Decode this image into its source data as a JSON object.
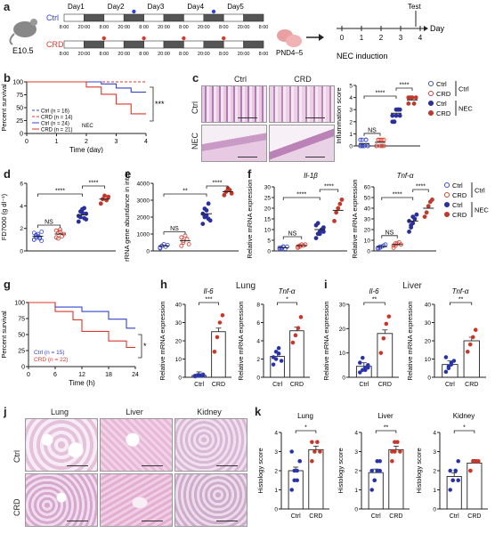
{
  "panel_a": {
    "letter": "a",
    "mouse_label": "E10.5",
    "day_labels": [
      "Day1",
      "Day2",
      "Day3",
      "Day4",
      "Day5"
    ],
    "ctrl_label": "Ctrl",
    "crd_label": "CRD",
    "time_ticks": [
      "8:00",
      "20:00",
      "8:00",
      "20:00",
      "8:00",
      "20:00",
      "8:00",
      "20:00",
      "8:00",
      "20:00",
      "8:00"
    ],
    "pnd_label": "PND4–5",
    "test_label": "Test",
    "nec_axis_ticks": [
      "0",
      "1",
      "2",
      "3",
      "4"
    ],
    "day_axis_label": "Day",
    "nec_label": "NEC induction"
  },
  "panel_b": {
    "letter": "b",
    "ylabel": "Percent survival",
    "xlabel": "Time (day)",
    "legend": [
      "Ctrl (n = 16)",
      "CRD (n = 14)",
      "Ctrl (n = 24)",
      "CRD (n = 21)"
    ],
    "nec_label": "NEC",
    "sig": "***"
  },
  "panel_c": {
    "letter": "c",
    "col_labels": [
      "Ctrl",
      "CRD"
    ],
    "row_labels": [
      "Ctrl",
      "NEC"
    ],
    "ylabel": "Inflammation score",
    "sig": [
      "****",
      "****",
      "NS"
    ],
    "legend": [
      "Ctrl",
      "CRD",
      "Ctrl",
      "CRD"
    ],
    "group_labels": [
      "Ctrl",
      "NEC"
    ]
  },
  "panel_d": {
    "letter": "d",
    "ylabel": "FD7000 (g dl⁻¹)",
    "sig": [
      "****",
      "****",
      "NS"
    ]
  },
  "panel_e": {
    "letter": "e",
    "ylabel": "16s rRNA gene abundance in intestine",
    "sig": [
      "**",
      "****",
      "NS"
    ]
  },
  "panel_f": {
    "letter": "f",
    "titles": [
      "Il-1β",
      "Tnf-α"
    ],
    "ylabel": "Relative mRNA expression",
    "sig": [
      "****",
      "****",
      "NS"
    ],
    "legend": [
      "Ctrl",
      "CRD",
      "Ctrl",
      "CRD"
    ],
    "group_labels": [
      "Ctrl",
      "NEC"
    ]
  },
  "panel_g": {
    "letter": "g",
    "ylabel": "Percent survival",
    "xlabel": "Time (h)",
    "legend": [
      "Ctrl (n = 15)",
      "CRD (n = 22)"
    ],
    "sig": "*"
  },
  "panel_h": {
    "letter": "h",
    "tissue": "Lung",
    "titles": [
      "Il-6",
      "Tnf-α"
    ],
    "ylabel": "Relative mRNA expression",
    "sig": [
      "***",
      "*"
    ],
    "xcats": [
      "Ctrl",
      "CRD"
    ]
  },
  "panel_i": {
    "letter": "i",
    "tissue": "Liver",
    "titles": [
      "Il-6",
      "Tnf-α"
    ],
    "ylabel": "Relative mRNA expression",
    "sig": [
      "**",
      "**"
    ],
    "xcats": [
      "Ctrl",
      "CRD"
    ]
  },
  "panel_j": {
    "letter": "j",
    "col_labels": [
      "Lung",
      "Liver",
      "Kidney"
    ],
    "row_labels": [
      "Ctrl",
      "CRD"
    ]
  },
  "panel_k": {
    "letter": "k",
    "titles": [
      "Lung",
      "Liver",
      "Kidney"
    ],
    "ylabel": "Histology score",
    "sig": [
      "*",
      "**",
      "*"
    ],
    "xcats": [
      "Ctrl",
      "CRD"
    ]
  },
  "colors": {
    "ctrl": "#3344cc",
    "crd": "#d9382a",
    "ctrl_nec": "#2a2f9a",
    "crd_nec": "#c0392b"
  },
  "chart_data": [
    {
      "id": "b",
      "type": "line",
      "title": "",
      "xlabel": "Time (day)",
      "ylabel": "Percent survival",
      "xlim": [
        0,
        4
      ],
      "ylim": [
        0,
        100
      ],
      "xticks": [
        0,
        1,
        2,
        3,
        4
      ],
      "yticks": [
        0,
        25,
        50,
        75,
        100
      ],
      "series": [
        {
          "name": "Ctrl (n = 16)",
          "x": [
            0,
            4
          ],
          "y": [
            100,
            100
          ]
        },
        {
          "name": "CRD (n = 14)",
          "x": [
            0,
            4
          ],
          "y": [
            100,
            100
          ]
        },
        {
          "name": "Ctrl (n = 24)",
          "x": [
            0,
            2.5,
            2.5,
            3,
            3,
            3.5,
            3.5,
            4
          ],
          "y": [
            100,
            100,
            96,
            96,
            88,
            88,
            80,
            80
          ]
        },
        {
          "name": "CRD (n = 21)",
          "x": [
            0,
            2,
            2,
            2.5,
            2.5,
            3,
            3,
            3.5,
            3.5,
            4
          ],
          "y": [
            100,
            100,
            90,
            90,
            76,
            76,
            57,
            57,
            38,
            38
          ]
        }
      ]
    },
    {
      "id": "c",
      "type": "scatter",
      "ylabel": "Inflammation score",
      "ylim": [
        0,
        5
      ],
      "yticks": [
        0,
        1,
        2,
        3,
        4,
        5
      ],
      "groups": [
        {
          "name": "Ctrl",
          "mean": 0.2,
          "values": [
            0,
            0,
            0,
            0.5,
            0,
            0.5,
            0,
            0,
            0.5,
            0,
            0,
            0.5
          ]
        },
        {
          "name": "CRD",
          "mean": 0.3,
          "values": [
            0,
            0.5,
            0,
            0.5,
            0,
            0,
            0.5,
            0.5,
            0,
            0.5
          ]
        },
        {
          "name": "Ctrl",
          "mean": 2.7,
          "values": [
            2,
            2,
            2.5,
            3,
            3,
            2.5,
            2,
            3,
            3,
            2.5
          ]
        },
        {
          "name": "CRD",
          "mean": 3.8,
          "values": [
            3.5,
            4,
            4,
            3.5,
            4,
            4
          ]
        }
      ]
    },
    {
      "id": "d",
      "type": "scatter",
      "ylabel": "FD7000 (g dl⁻¹)",
      "ylim": [
        0,
        6
      ],
      "yticks": [
        0,
        2,
        4,
        6
      ],
      "groups": [
        {
          "name": "Ctrl",
          "mean": 1.3,
          "values": [
            1.0,
            1.2,
            1.5,
            1.1,
            0.9,
            1.6,
            1.4,
            1.3,
            1.2,
            1.7,
            1.0,
            1.4
          ]
        },
        {
          "name": "CRD",
          "mean": 1.5,
          "values": [
            1.2,
            1.6,
            1.9,
            1.3,
            1.5,
            1.8,
            1.1,
            1.7
          ]
        },
        {
          "name": "Ctrl",
          "mean": 3.2,
          "values": [
            2.6,
            3.0,
            3.4,
            3.8,
            2.8,
            3.1,
            3.5,
            3.7,
            2.9,
            3.3
          ]
        },
        {
          "name": "CRD",
          "mean": 4.6,
          "values": [
            4.2,
            4.6,
            4.9,
            4.5,
            4.8
          ]
        }
      ]
    },
    {
      "id": "e",
      "type": "scatter",
      "ylabel": "16s rRNA gene abundance in intestine",
      "ylim": [
        0,
        4000
      ],
      "yticks": [
        0,
        1000,
        2000,
        3000,
        4000
      ],
      "groups": [
        {
          "name": "Ctrl",
          "mean": 300,
          "values": [
            200,
            300,
            400,
            250,
            350,
            150,
            300
          ]
        },
        {
          "name": "CRD",
          "mean": 600,
          "values": [
            300,
            500,
            900,
            700,
            400,
            800,
            600
          ]
        },
        {
          "name": "Ctrl",
          "mean": 2200,
          "values": [
            1600,
            2000,
            2400,
            2800,
            1800,
            2200,
            2500,
            2100,
            1900
          ]
        },
        {
          "name": "CRD",
          "mean": 3500,
          "values": [
            3300,
            3500,
            3700,
            3600,
            3400
          ]
        }
      ]
    },
    {
      "id": "f1",
      "type": "scatter",
      "title": "Il-1β",
      "ylabel": "Relative mRNA expression",
      "ylim": [
        0,
        30
      ],
      "yticks": [
        0,
        5,
        10,
        15,
        20,
        25,
        30
      ],
      "groups": [
        {
          "name": "Ctrl",
          "mean": 1.5,
          "values": [
            1,
            1.5,
            2,
            1,
            2,
            1.5,
            1,
            2
          ]
        },
        {
          "name": "CRD",
          "mean": 2.5,
          "values": [
            1.5,
            2,
            3,
            2.5,
            3,
            2,
            2.5
          ]
        },
        {
          "name": "Ctrl",
          "mean": 10,
          "values": [
            6,
            8,
            9,
            10,
            11,
            12,
            13,
            8,
            10,
            9
          ]
        },
        {
          "name": "CRD",
          "mean": 19,
          "values": [
            14,
            18,
            20,
            22,
            24
          ]
        }
      ]
    },
    {
      "id": "f2",
      "type": "scatter",
      "title": "Tnf-α",
      "ylabel": "Relative mRNA expression",
      "ylim": [
        0,
        60
      ],
      "yticks": [
        0,
        10,
        20,
        30,
        40,
        50,
        60
      ],
      "groups": [
        {
          "name": "Ctrl",
          "mean": 4,
          "values": [
            2,
            3,
            4,
            5,
            6,
            3,
            4
          ]
        },
        {
          "name": "CRD",
          "mean": 6,
          "values": [
            3,
            5,
            7,
            8,
            6,
            5,
            7
          ]
        },
        {
          "name": "Ctrl",
          "mean": 28,
          "values": [
            18,
            22,
            26,
            30,
            34,
            28,
            24,
            32
          ]
        },
        {
          "name": "CRD",
          "mean": 40,
          "values": [
            32,
            36,
            42,
            46,
            48
          ]
        }
      ]
    },
    {
      "id": "g",
      "type": "line",
      "xlabel": "Time (h)",
      "ylabel": "Percent survival",
      "xlim": [
        0,
        24
      ],
      "ylim": [
        0,
        100
      ],
      "xticks": [
        0,
        6,
        12,
        18,
        24
      ],
      "yticks": [
        0,
        25,
        50,
        75,
        100
      ],
      "series": [
        {
          "name": "Ctrl (n = 15)",
          "x": [
            0,
            6,
            6,
            12,
            12,
            18,
            18,
            22,
            22,
            24
          ],
          "y": [
            100,
            100,
            93,
            93,
            86,
            86,
            74,
            74,
            60,
            60
          ]
        },
        {
          "name": "CRD (n = 22)",
          "x": [
            0,
            6,
            6,
            10,
            10,
            12,
            12,
            18,
            18,
            22,
            22,
            24
          ],
          "y": [
            100,
            100,
            86,
            86,
            73,
            73,
            55,
            55,
            40,
            40,
            30,
            30
          ]
        }
      ]
    },
    {
      "id": "h1",
      "type": "bar",
      "title": "Il-6",
      "ylabel": "Relative mRNA expression",
      "categories": [
        "Ctrl",
        "CRD"
      ],
      "ylim": [
        0,
        40
      ],
      "yticks": [
        0,
        10,
        20,
        30,
        40
      ],
      "values": [
        1,
        25
      ],
      "points": [
        [
          0.5,
          1,
          1,
          1.5,
          0.8,
          1.2,
          1,
          0.9
        ],
        [
          14,
          22,
          30,
          34
        ]
      ]
    },
    {
      "id": "h2",
      "type": "bar",
      "title": "Tnf-α",
      "ylabel": "Relative mRNA expression",
      "categories": [
        "Ctrl",
        "CRD"
      ],
      "ylim": [
        0,
        8
      ],
      "yticks": [
        0,
        2,
        4,
        6,
        8
      ],
      "values": [
        2.3,
        5.1
      ],
      "points": [
        [
          1.4,
          2,
          2.6,
          1.8,
          2.2,
          2.8,
          3.2
        ],
        [
          3.8,
          4.6,
          5.4,
          6.6
        ]
      ]
    },
    {
      "id": "i1",
      "type": "bar",
      "title": "Il-6",
      "ylabel": "Relative mRNA expression",
      "categories": [
        "Ctrl",
        "CRD"
      ],
      "ylim": [
        0,
        30
      ],
      "yticks": [
        0,
        10,
        20,
        30
      ],
      "values": [
        4.5,
        18
      ],
      "points": [
        [
          2,
          3,
          4,
          5,
          6,
          8,
          3,
          4
        ],
        [
          10,
          16,
          22,
          25
        ]
      ]
    },
    {
      "id": "i2",
      "type": "bar",
      "title": "Tnf-α",
      "ylabel": "Relative mRNA expression",
      "categories": [
        "Ctrl",
        "CRD"
      ],
      "ylim": [
        0,
        40
      ],
      "yticks": [
        0,
        10,
        20,
        30,
        40
      ],
      "values": [
        7,
        20
      ],
      "points": [
        [
          3,
          5,
          7,
          9,
          11,
          6,
          8
        ],
        [
          14,
          18,
          22,
          26
        ]
      ]
    },
    {
      "id": "k1",
      "type": "bar",
      "title": "Lung",
      "ylabel": "Histology score",
      "categories": [
        "Ctrl",
        "CRD"
      ],
      "ylim": [
        0,
        4
      ],
      "yticks": [
        0,
        1,
        2,
        3,
        4
      ],
      "values": [
        2.0,
        3.1
      ],
      "points": [
        [
          1,
          1.5,
          2,
          2.5,
          3,
          2,
          1.5,
          2.5
        ],
        [
          2.5,
          3,
          3.5,
          3,
          3.5
        ]
      ]
    },
    {
      "id": "k2",
      "type": "bar",
      "title": "Liver",
      "ylabel": "Histology score",
      "categories": [
        "Ctrl",
        "CRD"
      ],
      "ylim": [
        0,
        4
      ],
      "yticks": [
        0,
        1,
        2,
        3,
        4
      ],
      "values": [
        1.9,
        3.1
      ],
      "points": [
        [
          1,
          1.5,
          2,
          2.5,
          2,
          1.5,
          2.5,
          2
        ],
        [
          2.5,
          3,
          3.5,
          3,
          3,
          3.5
        ]
      ]
    },
    {
      "id": "k3",
      "type": "bar",
      "title": "Kidney",
      "ylabel": "Histology score",
      "categories": [
        "Ctrl",
        "CRD"
      ],
      "ylim": [
        0,
        4
      ],
      "yticks": [
        0,
        1,
        2,
        3,
        4
      ],
      "values": [
        1.7,
        2.4
      ],
      "points": [
        [
          1,
          1.5,
          2,
          1.5,
          2,
          1.5,
          2,
          2.5
        ],
        [
          2,
          2.5,
          2.5,
          2.5,
          2
        ]
      ]
    }
  ]
}
